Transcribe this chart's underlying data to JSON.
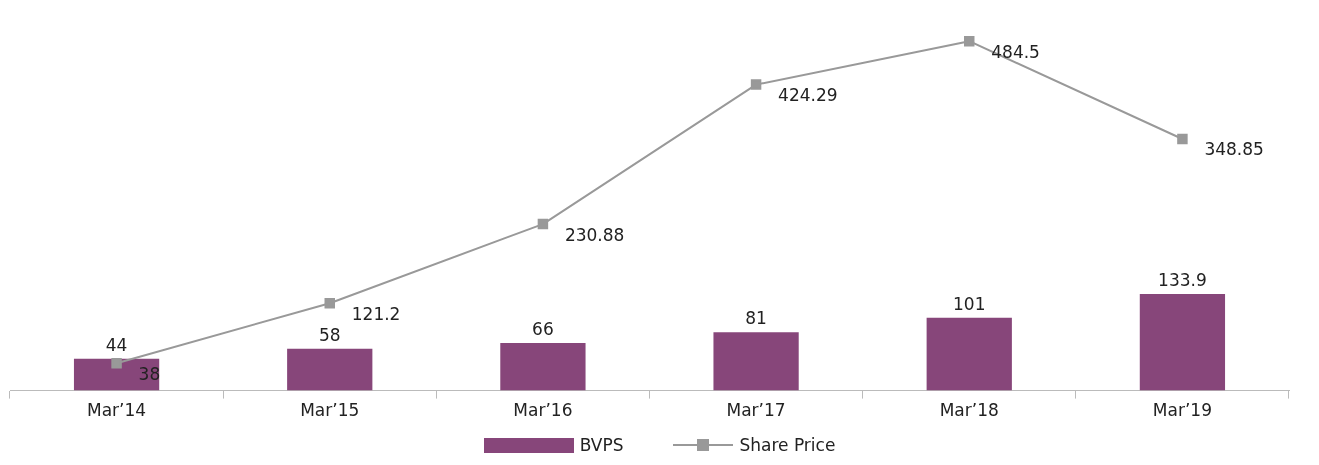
{
  "chart_data": {
    "type": "bar",
    "categories": [
      "Mar’14",
      "Mar’15",
      "Mar’16",
      "Mar’17",
      "Mar’18",
      "Mar’19"
    ],
    "series": [
      {
        "name": "BVPS",
        "color": "#87467a",
        "values": [
          44,
          58,
          66,
          81,
          101,
          133.9
        ]
      },
      {
        "name": "Share Price",
        "type": "line",
        "color": "#999999",
        "values": [
          38,
          121.2,
          230.88,
          424.29,
          484.5,
          348.85
        ]
      }
    ],
    "data_labels": true,
    "legend": "bottom",
    "grid": false,
    "marker": "square",
    "line_style": "solid"
  }
}
